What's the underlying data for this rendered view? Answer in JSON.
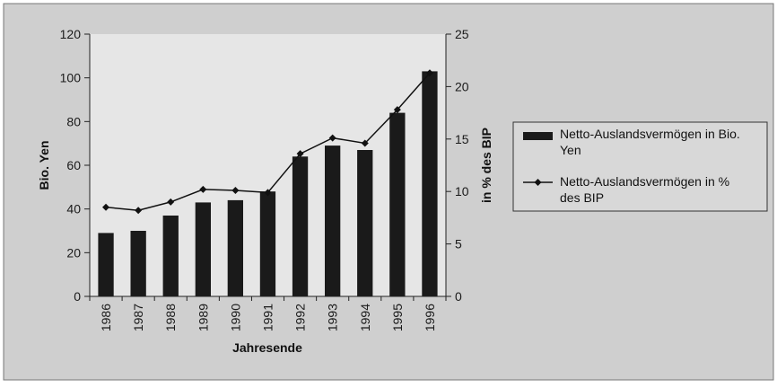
{
  "colors": {
    "page_bg": "#ffffff",
    "chart_area_bg": "#cfcfcf",
    "plot_bg": "#e6e6e6",
    "bar": "#1a1a1a",
    "line": "#111111",
    "axis": "#222222"
  },
  "chart_data": {
    "type": "bar",
    "title": "",
    "xlabel": "Jahresende",
    "ylabel": "Bio. Yen",
    "y2label": "in % des BIP",
    "categories": [
      "1986",
      "1987",
      "1988",
      "1989",
      "1990",
      "1991",
      "1992",
      "1993",
      "1994",
      "1995",
      "1996"
    ],
    "ylim": [
      0,
      120
    ],
    "y2lim": [
      0,
      25
    ],
    "yticks": [
      "0",
      "20",
      "40",
      "60",
      "80",
      "100",
      "120"
    ],
    "y2ticks": [
      "0",
      "5",
      "10",
      "15",
      "20",
      "25"
    ],
    "grid": false,
    "legend_position": "right",
    "series": [
      {
        "name": "Netto-Auslandsvermögen in Bio. Yen",
        "type": "bar",
        "axis": "left",
        "values": [
          29,
          30,
          37,
          43,
          44,
          48,
          64,
          69,
          67,
          84,
          103
        ]
      },
      {
        "name": "Netto-Auslandsvermögen in % des BIP",
        "type": "line",
        "axis": "right",
        "marker": "diamond",
        "values": [
          8.5,
          8.2,
          9.0,
          10.2,
          10.1,
          9.9,
          13.6,
          15.1,
          14.6,
          17.8,
          21.3
        ]
      }
    ]
  }
}
